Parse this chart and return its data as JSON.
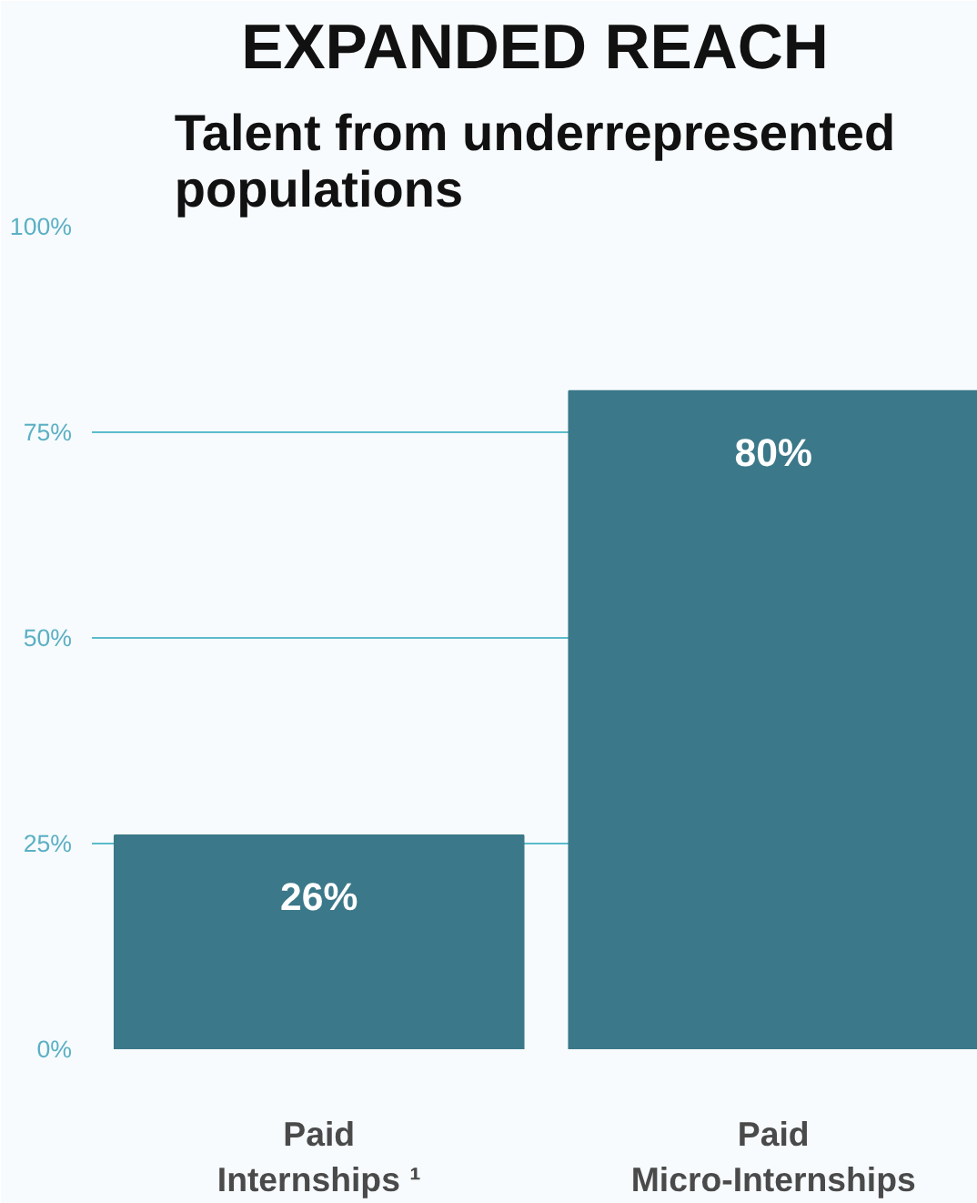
{
  "chart_data": {
    "type": "bar",
    "title": "EXPANDED REACH",
    "subtitle": "Talent from underrepresented populations",
    "categories": [
      "Paid\nInternships ¹",
      "Paid\nMicro-Internships"
    ],
    "values": [
      26,
      80
    ],
    "color": "#3b7889",
    "ylim": [
      0,
      100
    ],
    "yticks": [
      {
        "value": 0,
        "label": "0%"
      },
      {
        "value": 25,
        "label": "25%"
      },
      {
        "value": 50,
        "label": "50%"
      },
      {
        "value": 75,
        "label": "75%"
      },
      {
        "value": 100,
        "label": "100%"
      }
    ],
    "value_labels": [
      "26%",
      "80%"
    ],
    "grid": "y"
  }
}
